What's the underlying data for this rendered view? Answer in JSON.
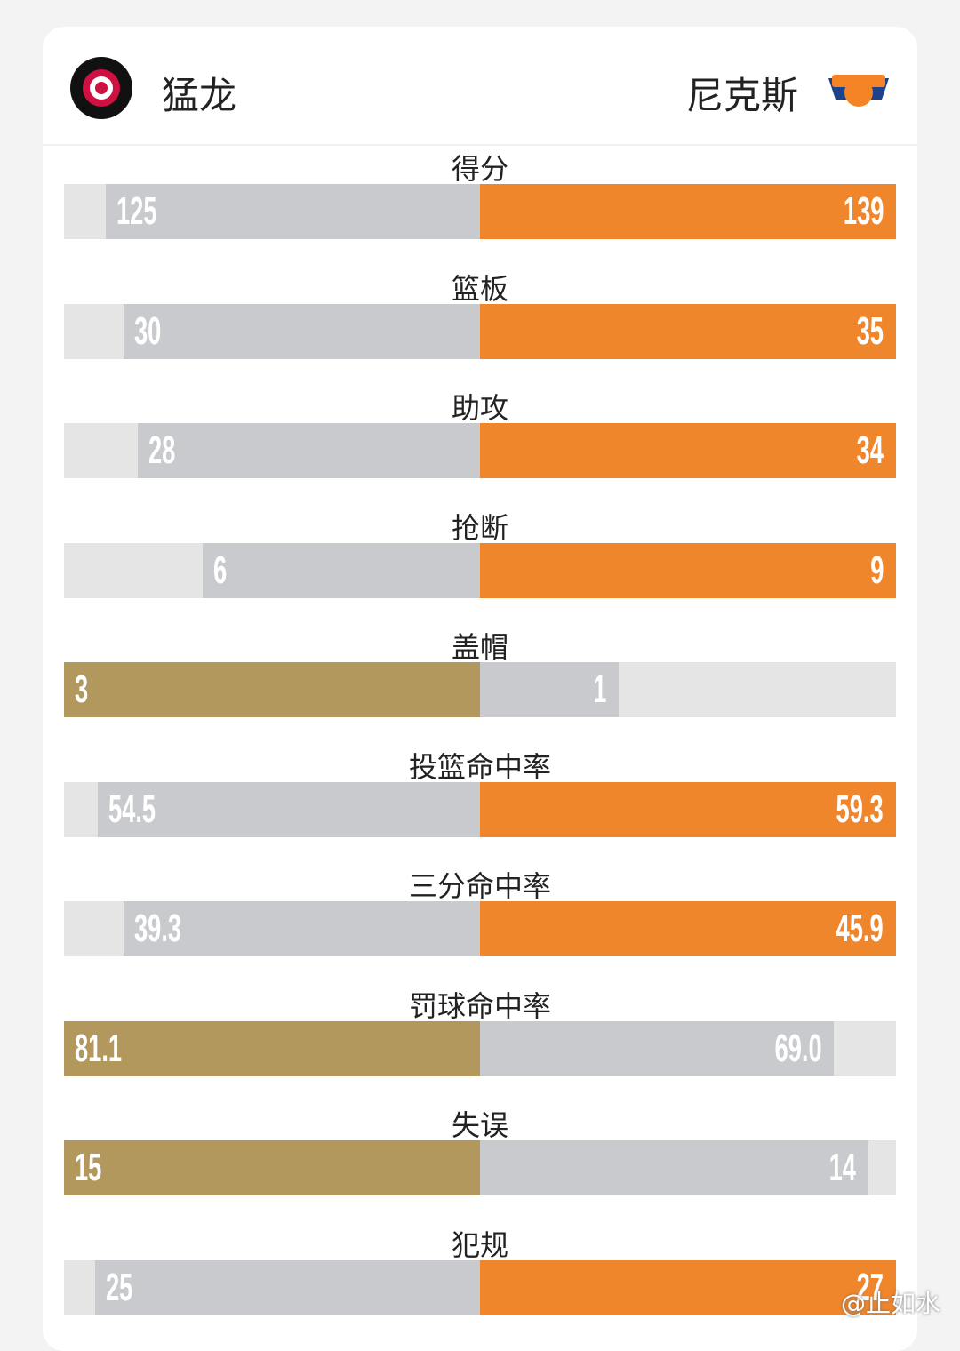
{
  "header": {
    "home": "猛龙",
    "away": "尼克斯"
  },
  "colors": {
    "home": "#b2985c",
    "away": "#f0862c",
    "loser": "#c9cacd",
    "track": "#e5e5e6"
  },
  "stats": [
    {
      "label": "得分",
      "home": 125,
      "away": 139
    },
    {
      "label": "篮板",
      "home": 30,
      "away": 35
    },
    {
      "label": "助攻",
      "home": 28,
      "away": 34
    },
    {
      "label": "抢断",
      "home": 6,
      "away": 9
    },
    {
      "label": "盖帽",
      "home": 3,
      "away": 1
    },
    {
      "label": "投篮命中率",
      "home": 54.5,
      "away": 59.3
    },
    {
      "label": "三分命中率",
      "home": 39.3,
      "away": 45.9
    },
    {
      "label": "罚球命中率",
      "home": 81.1,
      "away": 69.0,
      "away_label": "69.0"
    },
    {
      "label": "失误",
      "home": 15,
      "away": 14
    },
    {
      "label": "犯规",
      "home": 25,
      "away": 27
    }
  ],
  "watermark": "@止如水"
}
